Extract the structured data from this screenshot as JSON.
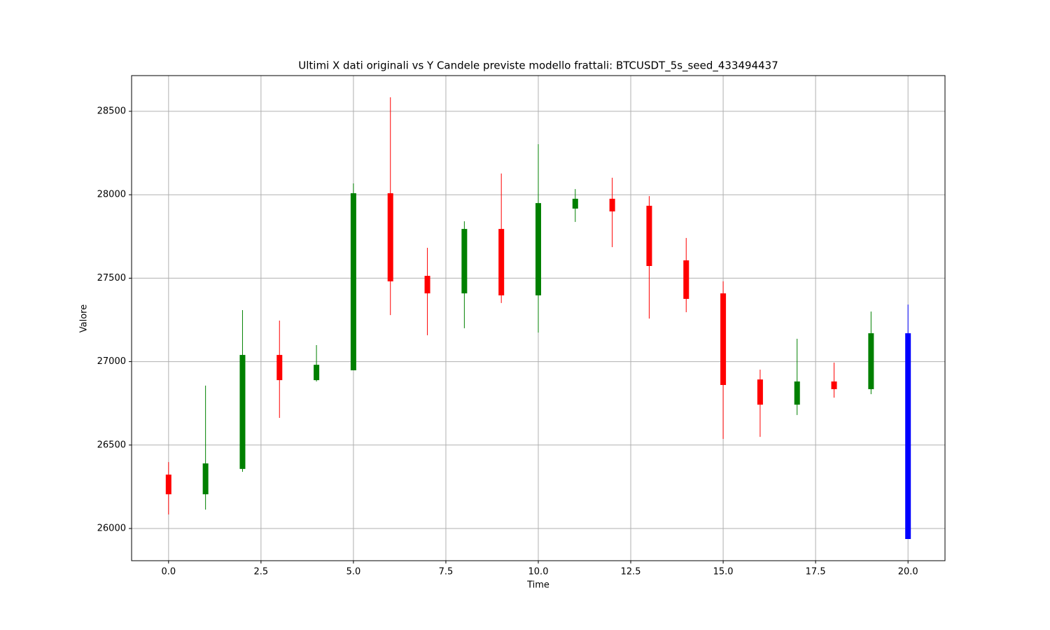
{
  "chart_data": {
    "type": "candlestick",
    "title": "Ultimi X dati originali vs Y Candele previste modello frattali: BTCUSDT_5s_seed_433494437",
    "x_label": "Time",
    "y_label": "Valore",
    "grid": true,
    "xlim": [
      -1,
      21
    ],
    "ylim": [
      25807,
      28714
    ],
    "xticks": [
      {
        "value": 0,
        "label": "0.0"
      },
      2.5,
      {
        "value": 5,
        "label": "5.0"
      },
      7.5,
      {
        "value": 10,
        "label": "10.0"
      },
      12.5,
      {
        "value": 15,
        "label": "15.0"
      },
      17.5,
      {
        "value": 20,
        "label": "20.0"
      }
    ],
    "yticks": [
      26000,
      26500,
      27000,
      27500,
      28000,
      28500
    ],
    "x": [
      0,
      1,
      2,
      3,
      4,
      5,
      6,
      7,
      8,
      9,
      10,
      11,
      12,
      13,
      14,
      15,
      16,
      17,
      18,
      19,
      20
    ],
    "open": [
      26323,
      26205,
      26357,
      27040,
      26889,
      26948,
      28009,
      27514,
      27409,
      27795,
      27397,
      27917,
      27976,
      27934,
      27607,
      27409,
      26893,
      26742,
      26881,
      26835,
      27170
    ],
    "high": [
      26398,
      26856,
      27309,
      27246,
      27099,
      28068,
      28584,
      27682,
      27841,
      28127,
      28303,
      28034,
      28102,
      27992,
      27741,
      27481,
      26952,
      27137,
      26994,
      27300,
      27342
    ],
    "low": [
      26084,
      26113,
      26340,
      26663,
      26881,
      26948,
      27279,
      27158,
      27200,
      27351,
      27174,
      27837,
      27686,
      27258,
      27296,
      26537,
      26549,
      26680,
      26784,
      26805,
      25937
    ],
    "close": [
      26205,
      26390,
      27040,
      26889,
      26981,
      28009,
      27481,
      27409,
      27795,
      27397,
      27950,
      27976,
      27900,
      27573,
      27376,
      26860,
      26742,
      26881,
      26835,
      27170,
      25937
    ],
    "colors": [
      "red",
      "green",
      "green",
      "red",
      "green",
      "green",
      "red",
      "red",
      "green",
      "red",
      "green",
      "green",
      "red",
      "red",
      "red",
      "red",
      "red",
      "green",
      "red",
      "green",
      "blue"
    ]
  }
}
